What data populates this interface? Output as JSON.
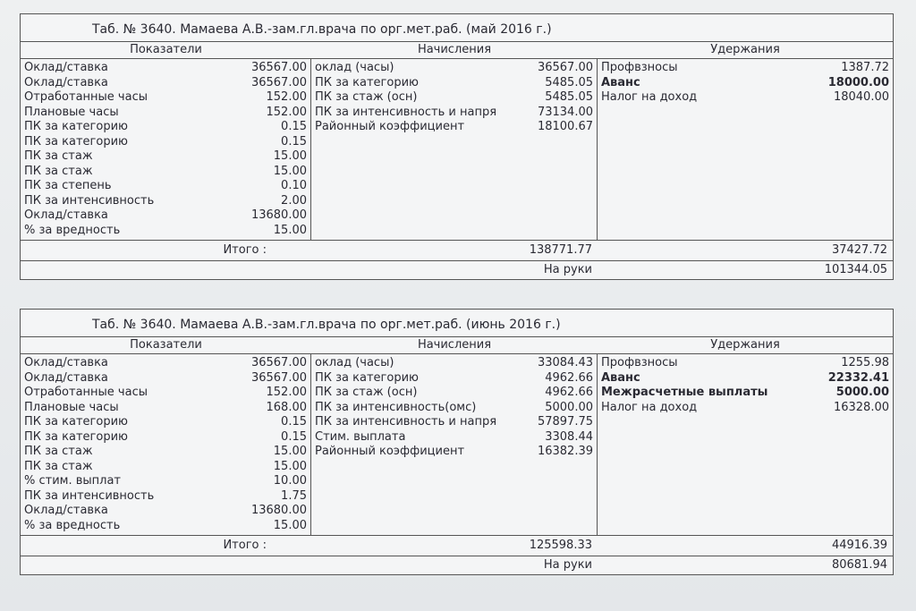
{
  "slips": [
    {
      "title": "Таб. № 3640. Мамаева А.В.-зам.гл.врача по орг.мет.раб. (май 2016 г.)",
      "headers": [
        "Показатели",
        "Начисления",
        "Удержания"
      ],
      "indicators": [
        [
          "Оклад/ставка",
          "36567.00"
        ],
        [
          "Оклад/ставка",
          "36567.00"
        ],
        [
          "Отработанные часы",
          "152.00"
        ],
        [
          "Плановые часы",
          "152.00"
        ],
        [
          "ПК за категорию",
          "0.15"
        ],
        [
          "ПК за категорию",
          "0.15"
        ],
        [
          "ПК за стаж",
          "15.00"
        ],
        [
          "ПК за стаж",
          "15.00"
        ],
        [
          "ПК за степень",
          "0.10"
        ],
        [
          "ПК за интенсивность",
          "2.00"
        ],
        [
          "Оклад/ставка",
          "13680.00"
        ],
        [
          "% за вредность",
          "15.00"
        ]
      ],
      "accruals": [
        [
          "оклад (часы)",
          "36567.00"
        ],
        [
          "ПК за категорию",
          "5485.05"
        ],
        [
          "ПК за стаж (осн)",
          "5485.05"
        ],
        [
          "ПК за интенсивность и напря",
          "73134.00"
        ],
        [
          "Районный коэффициент",
          "18100.67"
        ]
      ],
      "deductions": [
        {
          "label": "Профвзносы",
          "value": "1387.72",
          "bold": false
        },
        {
          "label": "Аванс",
          "value": "18000.00",
          "bold": true
        },
        {
          "label": "Налог на доход",
          "value": "18040.00",
          "bold": false
        }
      ],
      "total_label": "Итого :",
      "accruals_total": "138771.77",
      "deductions_total": "37427.72",
      "net_label": "На руки",
      "net": "101344.05"
    },
    {
      "title": "Таб. № 3640. Мамаева А.В.-зам.гл.врача по орг.мет.раб. (июнь 2016 г.)",
      "headers": [
        "Показатели",
        "Начисления",
        "Удержания"
      ],
      "indicators": [
        [
          "Оклад/ставка",
          "36567.00"
        ],
        [
          "Оклад/ставка",
          "36567.00"
        ],
        [
          "Отработанные часы",
          "152.00"
        ],
        [
          "Плановые часы",
          "168.00"
        ],
        [
          "ПК за категорию",
          "0.15"
        ],
        [
          "ПК за категорию",
          "0.15"
        ],
        [
          "ПК за стаж",
          "15.00"
        ],
        [
          "ПК за стаж",
          "15.00"
        ],
        [
          "% стим. выплат",
          "10.00"
        ],
        [
          "ПК за интенсивность",
          "1.75"
        ],
        [
          "Оклад/ставка",
          "13680.00"
        ],
        [
          "% за вредность",
          "15.00"
        ]
      ],
      "accruals": [
        [
          "оклад (часы)",
          "33084.43"
        ],
        [
          "ПК за категорию",
          "4962.66"
        ],
        [
          "ПК за стаж (осн)",
          "4962.66"
        ],
        [
          "ПК за интенсивность(омс)",
          "5000.00"
        ],
        [
          "ПК за интенсивность и напря",
          "57897.75"
        ],
        [
          "Стим. выплата",
          "3308.44"
        ],
        [
          "Районный коэффициент",
          "16382.39"
        ]
      ],
      "deductions": [
        {
          "label": "Профвзносы",
          "value": "1255.98",
          "bold": false
        },
        {
          "label": "Аванс",
          "value": "22332.41",
          "bold": true
        },
        {
          "label": "Межрасчетные выплаты",
          "value": "5000.00",
          "bold": true
        },
        {
          "label": "Налог на доход",
          "value": "16328.00",
          "bold": false
        }
      ],
      "total_label": "Итого :",
      "accruals_total": "125598.33",
      "deductions_total": "44916.39",
      "net_label": "На руки",
      "net": "80681.94"
    }
  ]
}
